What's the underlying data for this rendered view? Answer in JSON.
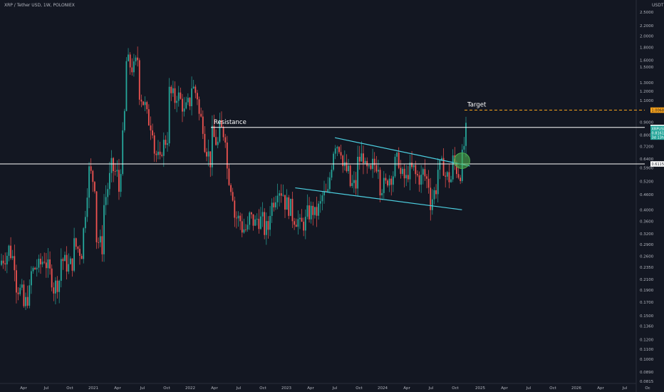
{
  "header": {
    "title": "XRP / Tether USD, 1W, POLONIEX",
    "unit": "USDT"
  },
  "colors": {
    "background": "#131722",
    "up": "#26a69a",
    "down": "#ef5350",
    "channel": "#4dd0e1",
    "level": "#ffffff",
    "target": "#f7a21b",
    "highlight": "#4caf50"
  },
  "chart_data": {
    "type": "candlestick",
    "title": "XRP / Tether USD, 1W, POLONIEX",
    "scale": "log",
    "ylim": [
      0.08,
      2.65
    ],
    "ylabel": "USDT",
    "y_ticks": [
      "2.5000",
      "2.2000",
      "2.0000",
      "1.8000",
      "1.6000",
      "1.5000",
      "1.3000",
      "1.2000",
      "1.1000",
      "0.9000",
      "0.8000",
      "0.7200",
      "0.6400",
      "0.5900",
      "0.5200",
      "0.4600",
      "0.4000",
      "0.3600",
      "0.3200",
      "0.2900",
      "0.2600",
      "0.2350",
      "0.2100",
      "0.1900",
      "0.1700",
      "0.1500",
      "0.1360",
      "0.1200",
      "0.1100",
      "0.1000",
      "0.0890",
      "0.0815"
    ],
    "x_ticks": [
      "Apr",
      "Jul",
      "Oct",
      "2021",
      "Apr",
      "Jul",
      "Oct",
      "2022",
      "Apr",
      "Jul",
      "Oct",
      "2023",
      "Apr",
      "Jul",
      "Oct",
      "2024",
      "Apr",
      "Jul",
      "Oct",
      "2025",
      "Apr",
      "Jul",
      "Oct",
      "2026",
      "Apr",
      "Jul",
      "Oc"
    ],
    "price_path": [
      [
        0.24,
        0.25
      ],
      [
        0.27,
        0.28
      ],
      [
        0.24,
        0.2
      ],
      [
        0.18,
        0.16
      ],
      [
        0.19,
        0.22
      ],
      [
        0.24,
        0.23
      ],
      [
        0.26,
        0.25
      ],
      [
        0.21,
        0.19
      ],
      [
        0.21,
        0.26
      ],
      [
        0.24,
        0.23
      ],
      [
        0.25,
        0.29
      ],
      [
        0.27,
        0.26
      ],
      [
        0.56,
        0.58
      ],
      [
        0.5,
        0.31
      ],
      [
        0.28,
        0.4
      ],
      [
        0.55,
        0.6
      ],
      [
        0.55,
        0.4
      ],
      [
        1.0,
        1.6
      ],
      [
        1.5,
        1.4
      ],
      [
        1.7,
        1.2
      ],
      [
        1.0,
        0.95
      ],
      [
        0.85,
        0.7
      ],
      [
        0.6,
        0.7
      ],
      [
        0.8,
        1.2
      ],
      [
        1.1,
        1.2
      ],
      [
        1.05,
        0.95
      ],
      [
        1.1,
        1.3
      ],
      [
        1.15,
        1.0
      ],
      [
        0.85,
        0.75
      ],
      [
        0.6,
        0.8
      ],
      [
        0.72,
        0.85
      ],
      [
        0.8,
        0.6
      ],
      [
        0.45,
        0.38
      ],
      [
        0.36,
        0.34
      ],
      [
        0.33,
        0.38
      ],
      [
        0.35,
        0.37
      ],
      [
        0.36,
        0.33
      ],
      [
        0.34,
        0.4
      ],
      [
        0.48,
        0.5
      ],
      [
        0.46,
        0.43
      ],
      [
        0.4,
        0.38
      ],
      [
        0.36,
        0.34
      ],
      [
        0.36,
        0.38
      ],
      [
        0.4,
        0.37
      ],
      [
        0.42,
        0.45
      ],
      [
        0.46,
        0.48
      ],
      [
        0.8,
        0.75
      ],
      [
        0.7,
        0.6
      ],
      [
        0.55,
        0.5
      ],
      [
        0.5,
        0.62
      ],
      [
        0.67,
        0.58
      ],
      [
        0.55,
        0.6
      ],
      [
        0.62,
        0.5
      ],
      [
        0.5,
        0.53
      ],
      [
        0.56,
        0.6
      ],
      [
        0.65,
        0.55
      ],
      [
        0.52,
        0.57
      ],
      [
        0.58,
        0.55
      ],
      [
        0.53,
        0.57
      ],
      [
        0.5,
        0.42
      ],
      [
        0.5,
        0.58
      ],
      [
        0.6,
        0.55
      ],
      [
        0.53,
        0.65
      ],
      [
        0.56,
        0.51
      ],
      [
        0.82,
        0.87
      ]
    ],
    "series": [
      {
        "type": "candlestick",
        "approx_ohlc_path": "weekly XRP/USDT candles, roughly Jan 2020 – Nov 2024"
      }
    ],
    "annotations": [
      {
        "type": "horizontal_line",
        "y": 0.8577,
        "label": "Resistance",
        "color": "#ffffff"
      },
      {
        "type": "horizontal_line",
        "y": 0.6115,
        "color": "#ffffff"
      },
      {
        "type": "horizontal_line",
        "y": 1.0068,
        "label": "Target",
        "style": "dashed",
        "color": "#f7a21b"
      },
      {
        "type": "trendline",
        "name": "upper channel",
        "points": [
          [
            "2023-07",
            0.78
          ],
          [
            "2024-12",
            0.6
          ]
        ],
        "color": "#4dd0e1"
      },
      {
        "type": "trendline",
        "name": "lower channel",
        "points": [
          [
            "2023-02",
            0.49
          ],
          [
            "2024-11",
            0.4
          ]
        ],
        "color": "#4dd0e1"
      },
      {
        "type": "circle",
        "label": "breakout",
        "at": [
          "2024-11",
          0.63
        ],
        "color": "#4caf50"
      }
    ],
    "price_labels": [
      {
        "value": "1.0068",
        "color": "#f7a21b"
      },
      {
        "value": "0.8577",
        "color": "#ffffff"
      },
      {
        "value": "XRPUSDT",
        "color": "#26a69a"
      },
      {
        "value": "0.8161",
        "color": "#26a69a"
      },
      {
        "value": "3d 13h",
        "color": "#26a69a"
      },
      {
        "value": "0.6115",
        "color": "#ffffff"
      }
    ],
    "text_labels": [
      "Resistance",
      "Target"
    ]
  }
}
